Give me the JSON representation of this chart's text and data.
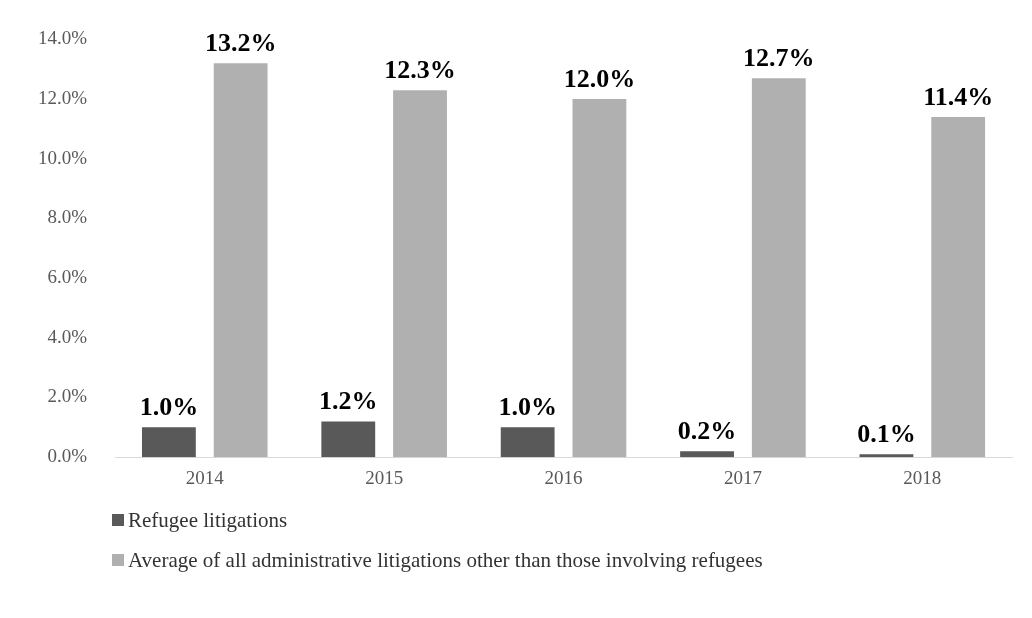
{
  "chart_data": {
    "type": "bar",
    "categories": [
      "2014",
      "2015",
      "2016",
      "2017",
      "2018"
    ],
    "series": [
      {
        "name": "Refugee litigations",
        "color": "#595959",
        "values": [
          1.0,
          1.2,
          1.0,
          0.2,
          0.1
        ],
        "value_labels": [
          "1.0%",
          "1.2%",
          "1.0%",
          "0.2%",
          "0.1%"
        ]
      },
      {
        "name": "Average of all administrative litigations other than those involving refugees",
        "color": "#b0b0b0",
        "values": [
          13.2,
          12.3,
          12.0,
          12.7,
          11.4
        ],
        "value_labels": [
          "13.2%",
          "12.3%",
          "12.0%",
          "12.7%",
          "11.4%"
        ]
      }
    ],
    "ylim": [
      0,
      14
    ],
    "yticks": [
      {
        "value": 0,
        "label": "0.0%"
      },
      {
        "value": 2,
        "label": "2.0%"
      },
      {
        "value": 4,
        "label": "4.0%"
      },
      {
        "value": 6,
        "label": "6.0%"
      },
      {
        "value": 8,
        "label": "8.0%"
      },
      {
        "value": 10,
        "label": "10.0%"
      },
      {
        "value": 12,
        "label": "12.0%"
      },
      {
        "value": 14,
        "label": "14.0%"
      }
    ],
    "grid": false,
    "legend": "bottom"
  }
}
